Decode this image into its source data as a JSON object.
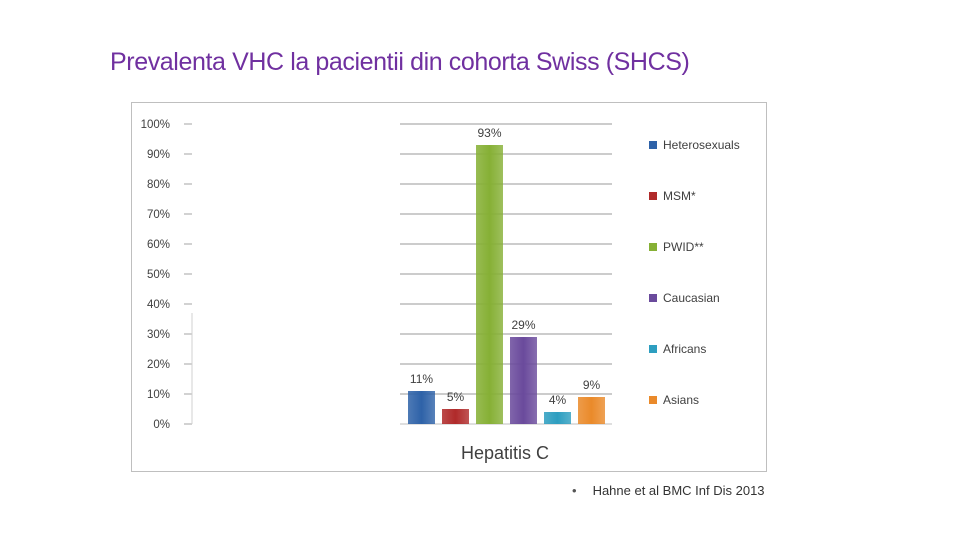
{
  "slide": {
    "title": "Prevalenta VHC la pacientii din cohorta Swiss (SHCS)",
    "citation_bullet": "•",
    "citation": "Hahne et al BMC Inf Dis 2013"
  },
  "chart_data": {
    "type": "bar",
    "title": "",
    "xlabel": "Hepatitis C",
    "ylabel": "",
    "ylim": [
      0,
      100
    ],
    "y_ticks": [
      "0%",
      "10%",
      "20%",
      "30%",
      "40%",
      "50%",
      "60%",
      "70%",
      "80%",
      "90%",
      "100%"
    ],
    "grid": true,
    "legend_position": "right",
    "series": [
      {
        "name": "Heterosexuals",
        "value": 11,
        "label": "11%",
        "color": "#2e62a8"
      },
      {
        "name": "MSM*",
        "value": 5,
        "label": "5%",
        "color": "#b02a2a"
      },
      {
        "name": "PWID**",
        "value": 93,
        "label": "93%",
        "color": "#86b035"
      },
      {
        "name": "Caucasian",
        "value": 29,
        "label": "29%",
        "color": "#6a4a9c"
      },
      {
        "name": "Africans",
        "value": 4,
        "label": "4%",
        "color": "#2d9ec0"
      },
      {
        "name": "Asians",
        "value": 9,
        "label": "9%",
        "color": "#ea8a2a"
      }
    ]
  }
}
